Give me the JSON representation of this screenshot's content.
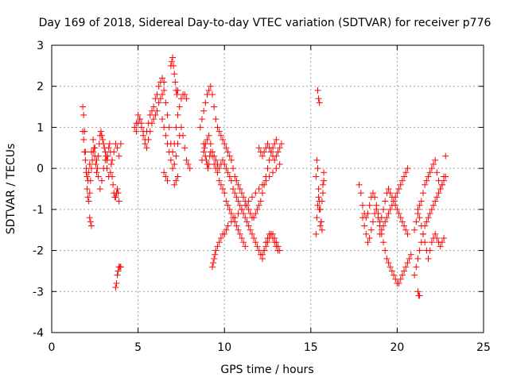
{
  "chart_data": {
    "type": "scatter",
    "title": "Day 169 of 2018, Sidereal Day-to-day VTEC variation (SDTVAR) for receiver p776",
    "xlabel": "GPS time / hours",
    "ylabel": "SDTVAR / TECUs",
    "xlim": [
      0,
      25
    ],
    "ylim": [
      -4,
      3
    ],
    "xticks": [
      "0",
      "5",
      "10",
      "15",
      "20",
      "25"
    ],
    "yticks": [
      "-4",
      "-3",
      "-2",
      "-1",
      "0",
      "1",
      "2",
      "3"
    ],
    "xtick_values": [
      0,
      5,
      10,
      15,
      20,
      25
    ],
    "ytick_values": [
      -4,
      -3,
      -2,
      -1,
      0,
      1,
      2,
      3
    ],
    "grid": true,
    "marker": "+",
    "color": "#ff0000",
    "series": [
      {
        "name": "p776",
        "x": [
          1.8,
          1.85,
          1.9,
          1.95,
          2.0,
          2.05,
          2.1,
          2.15,
          2.2,
          2.25,
          2.3,
          2.35,
          2.4,
          2.45,
          2.5,
          2.55,
          2.6,
          2.65,
          2.7,
          2.75,
          2.8,
          2.85,
          2.9,
          2.95,
          3.0,
          3.05,
          3.1,
          3.15,
          3.2,
          3.25,
          3.3,
          3.35,
          3.4,
          3.45,
          3.5,
          3.55,
          3.6,
          3.65,
          3.7,
          3.75,
          3.8,
          3.85,
          3.9,
          1.8,
          1.85,
          1.9,
          1.95,
          2.0,
          2.05,
          2.1,
          2.15,
          2.2,
          2.3,
          2.4,
          2.5,
          2.6,
          2.7,
          2.8,
          2.9,
          3.0,
          3.1,
          3.2,
          3.3,
          3.4,
          3.5,
          3.6,
          3.7,
          3.8,
          3.9,
          4.0,
          2.2,
          2.25,
          2.3,
          3.7,
          3.75,
          3.8,
          3.85,
          3.9,
          3.95,
          4.0,
          4.9,
          5.0,
          5.1,
          5.2,
          5.3,
          5.4,
          5.5,
          5.6,
          5.7,
          5.8,
          5.9,
          6.0,
          6.1,
          6.2,
          6.3,
          6.4,
          6.5,
          4.8,
          4.9,
          5.0,
          5.1,
          5.2,
          5.3,
          5.4,
          5.5,
          5.6,
          5.7,
          5.8,
          5.9,
          6.0,
          6.1,
          6.2,
          6.3,
          6.4,
          6.5,
          6.6,
          6.7,
          6.8,
          6.9,
          7.0,
          7.1,
          7.2,
          7.3,
          7.4,
          7.5,
          7.6,
          7.7,
          7.8,
          6.9,
          6.95,
          7.0,
          7.05,
          7.1,
          7.15,
          7.2,
          7.25,
          7.3,
          6.4,
          6.5,
          6.6,
          6.7,
          6.8,
          6.9,
          7.0,
          7.1,
          7.2,
          7.3,
          7.4,
          7.5,
          7.6,
          7.7,
          7.8,
          7.9,
          8.0,
          6.5,
          6.6,
          6.7,
          7.1,
          7.2,
          7.3,
          8.6,
          8.7,
          8.8,
          8.9,
          9.0,
          9.1,
          9.2,
          9.3,
          9.4,
          9.5,
          9.6,
          9.7,
          9.8,
          9.9,
          10.0,
          10.1,
          10.2,
          10.3,
          10.4,
          10.5,
          10.6,
          10.7,
          10.8,
          10.9,
          11.0,
          11.1,
          11.2,
          11.3,
          11.4,
          11.5,
          11.6,
          11.7,
          11.8,
          11.9,
          12.0,
          12.1,
          12.2,
          12.3,
          12.4,
          12.5,
          12.6,
          12.7,
          12.8,
          12.9,
          13.0,
          8.7,
          8.8,
          8.9,
          9.0,
          9.1,
          9.2,
          9.3,
          9.4,
          9.5,
          9.6,
          9.7,
          9.8,
          9.9,
          10.0,
          10.1,
          10.2,
          10.3,
          10.4,
          10.5,
          10.6,
          10.7,
          10.8,
          10.9,
          11.0,
          11.1,
          11.2,
          11.3,
          11.4,
          11.5,
          11.6,
          11.7,
          11.8,
          11.9,
          12.0,
          12.1,
          12.2,
          12.3,
          12.4,
          12.5,
          12.6,
          12.7,
          12.8,
          12.9,
          13.0,
          13.1,
          8.8,
          8.85,
          8.9,
          8.95,
          9.0,
          9.05,
          9.1,
          9.15,
          9.2,
          9.3,
          9.4,
          9.5,
          9.6,
          9.7,
          9.8,
          9.9,
          10.0,
          10.1,
          10.2,
          10.3,
          10.4,
          10.5,
          10.6,
          10.7,
          10.8,
          10.9,
          11.0,
          11.1,
          11.2,
          9.3,
          9.35,
          9.4,
          9.45,
          9.5,
          9.6,
          9.7,
          9.8,
          9.9,
          10.0,
          10.1,
          10.2,
          10.4,
          10.6,
          10.8,
          11.0,
          11.2,
          11.4,
          11.6,
          11.8,
          12.0,
          12.2,
          12.4,
          12.6,
          12.8,
          13.0,
          13.2,
          12.0,
          12.1,
          12.2,
          12.3,
          12.4,
          12.5,
          12.6,
          12.7,
          12.8,
          12.9,
          13.0,
          13.1,
          13.2,
          13.3,
          12.2,
          12.3,
          12.4,
          12.5,
          12.6,
          12.7,
          12.8,
          12.9,
          13.0,
          13.1,
          13.2,
          15.3,
          15.35,
          15.4,
          15.45,
          15.5,
          15.55,
          15.6,
          15.65,
          15.7,
          15.75,
          15.3,
          15.35,
          15.4,
          15.45,
          15.5,
          15.55,
          15.6,
          15.65,
          15.7,
          15.75,
          15.4,
          15.45,
          15.5,
          17.8,
          17.9,
          18.0,
          18.1,
          18.2,
          18.3,
          18.4,
          18.5,
          18.6,
          18.7,
          18.8,
          18.9,
          19.0,
          19.1,
          19.2,
          19.3,
          19.4,
          19.5,
          19.6,
          19.7,
          19.8,
          19.9,
          20.0,
          20.1,
          20.2,
          20.3,
          20.4,
          20.5,
          20.6,
          18.0,
          18.1,
          18.2,
          18.3,
          18.4,
          18.5,
          18.6,
          18.7,
          18.8,
          18.9,
          19.0,
          19.1,
          19.2,
          19.3,
          19.4,
          19.5,
          19.6,
          19.7,
          19.8,
          19.9,
          20.0,
          20.1,
          20.2,
          20.3,
          20.4,
          20.5,
          20.6,
          20.7,
          20.8,
          19.0,
          19.1,
          19.2,
          19.3,
          19.4,
          19.5,
          19.6,
          19.7,
          19.8,
          19.9,
          20.0,
          20.1,
          20.2,
          20.3,
          20.4,
          20.5,
          20.6,
          21.0,
          21.1,
          21.2,
          21.3,
          21.4,
          21.5,
          21.6,
          21.7,
          21.8,
          21.9,
          22.0,
          22.1,
          22.2,
          22.3,
          22.4,
          22.5,
          22.6,
          22.7,
          22.8,
          21.0,
          21.1,
          21.2,
          21.3,
          21.4,
          21.5,
          21.6,
          21.7,
          21.8,
          21.9,
          22.0,
          22.1,
          22.2,
          22.3,
          22.4,
          22.5,
          22.6,
          22.7,
          22.8,
          21.2,
          21.3,
          21.4,
          21.5,
          21.6,
          21.7,
          21.8,
          21.9,
          22.0,
          22.1,
          22.2,
          22.3,
          22.4,
          22.5,
          22.6,
          22.7,
          21.2,
          21.25,
          21.3
        ],
        "y": [
          1.5,
          1.3,
          0.9,
          0.4,
          -0.1,
          -0.5,
          -0.7,
          -0.8,
          -0.6,
          -0.3,
          0.0,
          0.2,
          0.4,
          0.5,
          0.3,
          0.1,
          -0.1,
          0.0,
          0.3,
          0.6,
          0.8,
          0.9,
          0.8,
          0.7,
          0.6,
          0.5,
          0.4,
          0.3,
          0.2,
          0.3,
          0.5,
          0.6,
          0.4,
          0.1,
          -0.2,
          -0.4,
          -0.6,
          -0.7,
          -0.7,
          -0.6,
          -0.5,
          -0.6,
          -0.8,
          0.9,
          0.7,
          0.4,
          0.2,
          0.0,
          -0.2,
          -0.3,
          -0.1,
          0.1,
          0.4,
          0.7,
          0.5,
          0.2,
          -0.2,
          -0.5,
          -0.3,
          0.0,
          0.2,
          0.0,
          -0.2,
          -0.1,
          0.2,
          0.4,
          0.6,
          0.5,
          0.3,
          0.6,
          -1.2,
          -1.3,
          -1.4,
          -2.9,
          -2.8,
          -2.6,
          -2.5,
          -2.4,
          -2.4,
          -2.4,
          0.9,
          1.1,
          1.2,
          1.0,
          0.8,
          0.7,
          0.9,
          1.1,
          1.3,
          1.4,
          1.5,
          1.7,
          1.8,
          2.0,
          2.1,
          2.2,
          2.1,
          1.0,
          1.1,
          1.3,
          1.2,
          1.1,
          0.9,
          0.6,
          0.5,
          0.7,
          0.9,
          1.1,
          1.2,
          1.3,
          1.4,
          1.6,
          1.7,
          1.8,
          1.9,
          1.6,
          1.3,
          1.0,
          0.6,
          0.4,
          0.6,
          1.0,
          1.3,
          1.5,
          1.7,
          1.8,
          1.8,
          1.7,
          2.5,
          2.6,
          2.7,
          2.5,
          2.3,
          2.1,
          1.9,
          1.8,
          1.9,
          1.2,
          1.0,
          0.8,
          0.6,
          0.4,
          0.2,
          0.0,
          0.1,
          0.3,
          0.6,
          0.8,
          1.0,
          0.8,
          0.5,
          0.2,
          0.1,
          0.0,
          -0.1,
          -0.2,
          -0.3,
          -0.4,
          -0.3,
          -0.2,
          1.0,
          1.2,
          1.4,
          1.6,
          1.8,
          1.9,
          2.0,
          1.8,
          1.5,
          1.2,
          1.0,
          0.9,
          0.8,
          0.7,
          0.6,
          0.5,
          0.4,
          0.3,
          0.2,
          0.0,
          -0.2,
          -0.3,
          -0.4,
          -0.5,
          -0.6,
          -0.7,
          -0.8,
          -0.9,
          -1.0,
          -1.1,
          -1.2,
          -1.2,
          -1.1,
          -1.0,
          -0.9,
          -0.8,
          -0.6,
          -0.4,
          -0.2,
          0.0,
          0.2,
          0.4,
          0.5,
          0.6,
          0.7,
          0.2,
          0.4,
          0.6,
          0.7,
          0.8,
          0.6,
          0.4,
          0.3,
          0.2,
          0.1,
          0.0,
          0.1,
          0.2,
          0.1,
          0.0,
          -0.1,
          -0.2,
          -0.3,
          -0.5,
          -0.6,
          -0.7,
          -0.8,
          -0.9,
          -1.0,
          -1.1,
          -1.2,
          -1.3,
          -1.4,
          -1.5,
          -1.6,
          -1.7,
          -1.8,
          -1.9,
          -2.0,
          -2.1,
          -2.2,
          -2.0,
          -1.8,
          -1.7,
          -1.6,
          -1.6,
          -1.7,
          -1.8,
          -1.9,
          -2.0,
          0.6,
          0.5,
          0.3,
          0.2,
          0.1,
          0.0,
          0.1,
          0.3,
          0.4,
          0.3,
          0.1,
          0.0,
          -0.1,
          -0.3,
          -0.4,
          -0.5,
          -0.6,
          -0.8,
          -0.9,
          -1.0,
          -1.1,
          -1.2,
          -1.3,
          -1.4,
          -1.5,
          -1.6,
          -1.7,
          -1.8,
          -1.9,
          -2.4,
          -2.3,
          -2.2,
          -2.1,
          -2.0,
          -1.9,
          -1.8,
          -1.7,
          -1.6,
          -1.6,
          -1.5,
          -1.4,
          -1.3,
          -1.2,
          -1.1,
          -1.0,
          -0.9,
          -0.8,
          -0.7,
          -0.6,
          -0.5,
          -0.4,
          -0.3,
          -0.2,
          -0.1,
          0.0,
          0.1,
          0.5,
          0.4,
          0.3,
          0.4,
          0.5,
          0.6,
          0.5,
          0.4,
          0.3,
          0.2,
          0.3,
          0.4,
          0.5,
          0.6,
          -2.1,
          -2.0,
          -1.9,
          -1.8,
          -1.7,
          -1.6,
          -1.6,
          -1.7,
          -1.8,
          -1.9,
          -2.0,
          -0.2,
          0.2,
          0.0,
          -0.5,
          -0.8,
          -1.0,
          -1.3,
          -1.5,
          -0.6,
          -0.3,
          -1.6,
          -1.2,
          -0.9,
          -0.7,
          -1.0,
          -1.4,
          -1.3,
          -0.8,
          -0.4,
          -0.1,
          1.9,
          1.7,
          1.6,
          -0.4,
          -0.6,
          -0.9,
          -1.1,
          -1.2,
          -1.1,
          -0.9,
          -0.7,
          -0.6,
          -0.7,
          -0.9,
          -1.1,
          -1.3,
          -1.2,
          -1.0,
          -0.8,
          -0.6,
          -0.5,
          -0.6,
          -0.7,
          -0.8,
          -0.9,
          -1.0,
          -1.1,
          -1.2,
          -1.3,
          -1.4,
          -1.5,
          -1.6,
          -1.2,
          -1.4,
          -1.6,
          -1.8,
          -1.7,
          -1.5,
          -1.3,
          -1.1,
          -1.0,
          -1.2,
          -1.4,
          -1.6,
          -1.8,
          -2.0,
          -2.2,
          -2.3,
          -2.4,
          -2.5,
          -2.6,
          -2.7,
          -2.8,
          -2.8,
          -2.7,
          -2.6,
          -2.5,
          -2.4,
          -2.3,
          -2.2,
          -2.1,
          -1.6,
          -1.5,
          -1.4,
          -1.3,
          -1.2,
          -1.1,
          -1.0,
          -0.9,
          -0.8,
          -0.7,
          -0.6,
          -0.5,
          -0.4,
          -0.3,
          -0.2,
          -0.1,
          0.0,
          -1.5,
          -1.3,
          -1.1,
          -0.9,
          -0.8,
          -0.6,
          -0.4,
          -0.3,
          -0.2,
          -0.1,
          0.0,
          0.1,
          0.2,
          -0.1,
          -0.3,
          -0.5,
          -0.4,
          -0.2,
          0.3,
          -2.6,
          -2.4,
          -2.2,
          -2.0,
          -1.8,
          -1.6,
          -1.4,
          -1.3,
          -1.2,
          -1.1,
          -1.0,
          -0.9,
          -0.8,
          -0.7,
          -0.6,
          -0.5,
          -0.4,
          -0.3,
          -0.2,
          -1.0,
          -1.2,
          -1.4,
          -1.6,
          -1.8,
          -2.0,
          -2.2,
          -2.0,
          -1.8,
          -1.7,
          -1.6,
          -1.7,
          -1.8,
          -1.9,
          -1.8,
          -1.7,
          -3.0,
          -3.1,
          -3.1
        ]
      }
    ]
  }
}
